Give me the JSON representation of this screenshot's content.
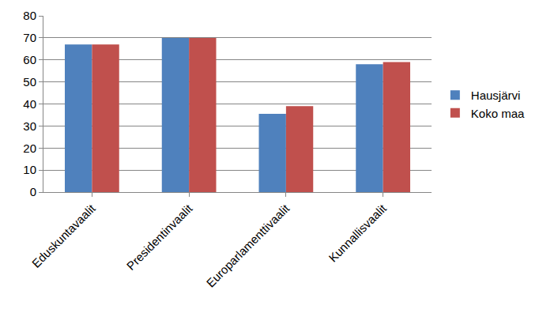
{
  "chart_data": {
    "type": "bar",
    "categories": [
      "Eduskuntavaalit",
      "Presidentinvaalit",
      "Europarlamenttivaalit",
      "Kunnallisvaalit"
    ],
    "series": [
      {
        "name": "Hausjärvi",
        "color": "#4f81bd",
        "values": [
          67,
          70,
          35.5,
          58
        ]
      },
      {
        "name": "Koko maa",
        "color": "#c0504d",
        "values": [
          67,
          70,
          39,
          59
        ]
      }
    ],
    "ylim": [
      0,
      80
    ],
    "yticks": [
      0,
      10,
      20,
      30,
      40,
      50,
      60,
      70,
      80
    ],
    "grid": true,
    "legend": "right"
  }
}
